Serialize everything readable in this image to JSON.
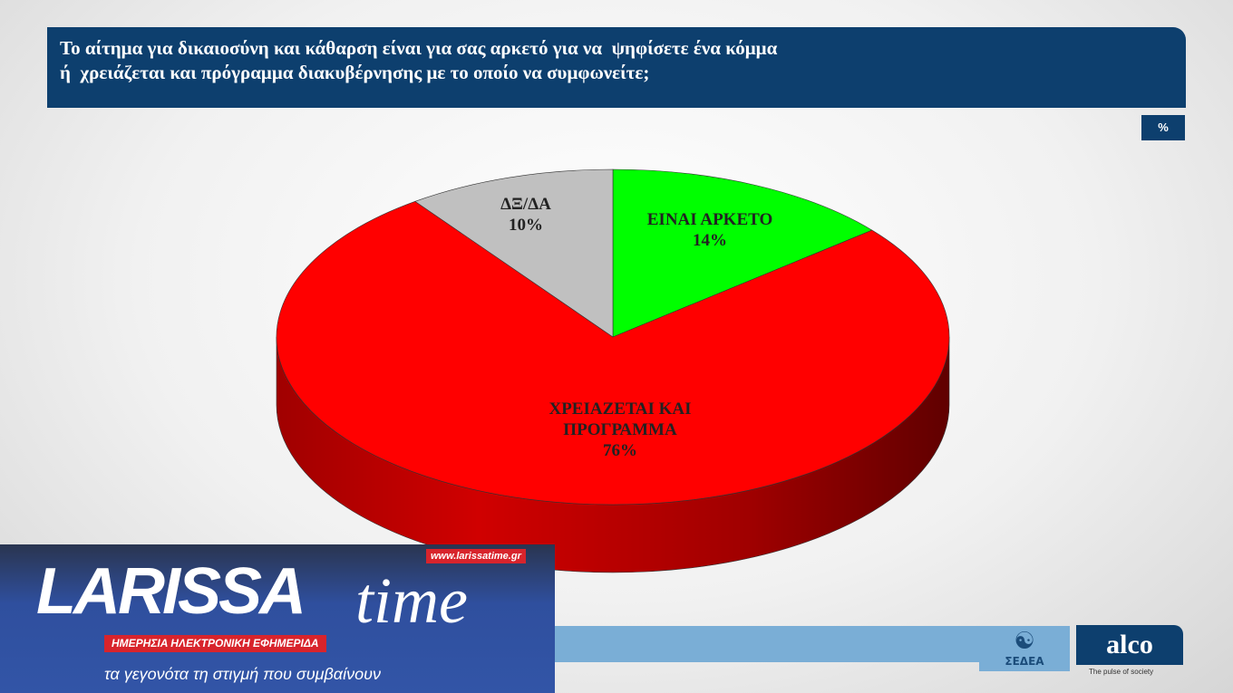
{
  "title": {
    "line1": "Το αίτημα για δικαιοσύνη και κάθαρση είναι για σας αρκετό για να  ψηφίσετε ένα κόμμα",
    "line2": "ή  χρειάζεται και πρόγραμμα διακυβέρνησης με το οποίο να συμφωνείτε;"
  },
  "unit": "%",
  "chart_data": {
    "type": "pie",
    "style": "3d",
    "start": "top",
    "direction": "clockwise",
    "slices": [
      {
        "label": "ΕΙΝΑΙ ΑΡΚΕΤΟ",
        "value": 14,
        "display": "14%",
        "color": "#00ff00"
      },
      {
        "label": "ΧΡΕΙΑΖΕΤΑΙ ΚΑΙ ΠΡΟΓΡΑΜΜΑ",
        "label_lines": [
          "ΧΡΕΙΑΖΕΤΑΙ ΚΑΙ",
          "ΠΡΟΓΡΑΜΜΑ"
        ],
        "value": 76,
        "display": "76%",
        "color": "#ff0000"
      },
      {
        "label": "ΔΞ/ΔΑ",
        "value": 10,
        "display": "10%",
        "color": "#c0c0c0"
      }
    ]
  },
  "logos": {
    "sedea": "ΣΕΔΕΑ",
    "alco": "alco",
    "alco_tagline": "The pulse of society"
  },
  "watermark": {
    "brand": "LARISSA",
    "brand2": "time",
    "url": "www.larissatime.gr",
    "subtitle": "ΗΜΕΡΗΣΙΑ ΗΛΕΚΤΡΟΝΙΚΗ ΕΦΗΜΕΡΙΔΑ",
    "slogan": "τα γεγονότα τη στιγμή που συμβαίνουν"
  }
}
